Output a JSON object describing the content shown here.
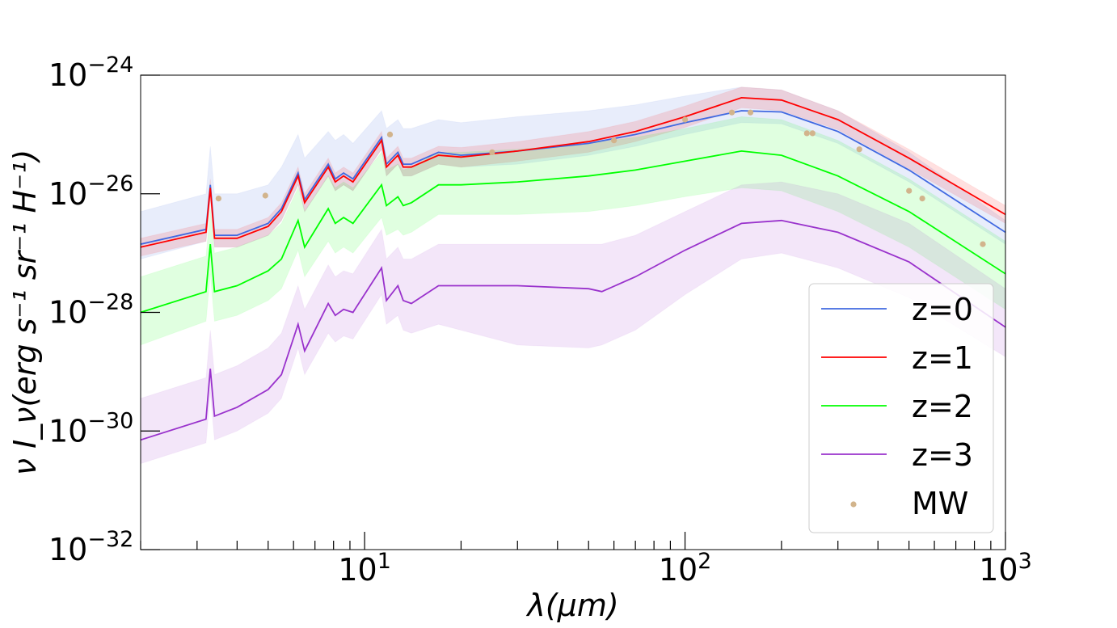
{
  "chart_data": {
    "type": "line",
    "title": "",
    "xlabel": "λ(μm)",
    "ylabel": "ν I_ν(erg s⁻¹ sr⁻¹ H⁻¹)",
    "xscale": "log",
    "yscale": "log",
    "xlim": [
      2,
      1000
    ],
    "ylim": [
      1e-32,
      1e-24
    ],
    "grid": false,
    "legend_position": "lower-right",
    "x_ticks": [
      {
        "value": 10,
        "base": "10",
        "exp": "1"
      },
      {
        "value": 100,
        "base": "10",
        "exp": "2"
      },
      {
        "value": 1000,
        "base": "10",
        "exp": "3"
      }
    ],
    "y_ticks": [
      {
        "value": 1e-24,
        "base": "10",
        "exp": "−24"
      },
      {
        "value": 1e-26,
        "base": "10",
        "exp": "−26"
      },
      {
        "value": 1e-28,
        "base": "10",
        "exp": "−28"
      },
      {
        "value": 1e-30,
        "base": "10",
        "exp": "−30"
      },
      {
        "value": 1e-32,
        "base": "10",
        "exp": "−32"
      }
    ],
    "series": [
      {
        "name": "z=0",
        "color": "#4169e1",
        "x": [
          2,
          3.2,
          3.3,
          3.4,
          4,
          5,
          5.5,
          6.2,
          6.5,
          7.7,
          8.1,
          8.6,
          9.2,
          11.3,
          11.7,
          12.7,
          13.2,
          14,
          17,
          20,
          30,
          50,
          70,
          100,
          150,
          200,
          300,
          500,
          1000
        ],
        "y": [
          -26.85,
          -26.6,
          -25.85,
          -26.7,
          -26.7,
          -26.5,
          -26.25,
          -25.65,
          -26.1,
          -25.5,
          -25.75,
          -25.65,
          -25.75,
          -25.05,
          -25.5,
          -25.3,
          -25.5,
          -25.5,
          -25.3,
          -25.35,
          -25.28,
          -25.15,
          -25.0,
          -24.8,
          -24.6,
          -24.62,
          -24.95,
          -25.6,
          -26.65
        ],
        "band_upper": [
          -26.3,
          -26.0,
          -25.2,
          -26.0,
          -26.0,
          -25.85,
          -25.55,
          -25.0,
          -25.4,
          -24.95,
          -25.1,
          -25.0,
          -25.15,
          -24.6,
          -24.9,
          -24.75,
          -24.9,
          -24.9,
          -24.75,
          -24.8,
          -24.7,
          -24.6,
          -24.5,
          -24.35,
          -24.2,
          -24.25,
          -24.6,
          -25.3,
          -26.45
        ],
        "band_lower": [
          -27.1,
          -26.8,
          -26.1,
          -26.9,
          -26.9,
          -26.7,
          -26.45,
          -25.85,
          -26.3,
          -25.7,
          -25.95,
          -25.85,
          -25.95,
          -25.25,
          -25.7,
          -25.5,
          -25.7,
          -25.7,
          -25.5,
          -25.55,
          -25.5,
          -25.35,
          -25.2,
          -25.0,
          -24.8,
          -24.82,
          -25.15,
          -25.8,
          -26.85
        ]
      },
      {
        "name": "z=1",
        "color": "#ff0000",
        "x": [
          2,
          3.2,
          3.3,
          3.4,
          4,
          5,
          5.5,
          6.2,
          6.5,
          7.7,
          8.1,
          8.6,
          9.2,
          11.3,
          11.7,
          12.7,
          13.2,
          14,
          17,
          20,
          30,
          50,
          70,
          100,
          150,
          200,
          300,
          500,
          1000
        ],
        "y": [
          -26.9,
          -26.65,
          -25.9,
          -26.75,
          -26.75,
          -26.55,
          -26.3,
          -25.7,
          -26.15,
          -25.55,
          -25.8,
          -25.7,
          -25.8,
          -25.1,
          -25.55,
          -25.35,
          -25.55,
          -25.55,
          -25.35,
          -25.38,
          -25.28,
          -25.12,
          -24.95,
          -24.7,
          -24.38,
          -24.42,
          -24.75,
          -25.4,
          -26.35
        ],
        "band_upper": [
          -26.75,
          -26.5,
          -25.75,
          -26.6,
          -26.6,
          -26.4,
          -26.15,
          -25.55,
          -26.0,
          -25.4,
          -25.65,
          -25.55,
          -25.65,
          -24.95,
          -25.4,
          -25.2,
          -25.4,
          -25.4,
          -25.2,
          -25.22,
          -25.12,
          -24.95,
          -24.78,
          -24.52,
          -24.2,
          -24.25,
          -24.6,
          -25.25,
          -26.2
        ],
        "band_lower": [
          -27.05,
          -26.8,
          -26.05,
          -26.9,
          -26.9,
          -26.7,
          -26.45,
          -25.85,
          -26.3,
          -25.7,
          -25.95,
          -25.85,
          -25.95,
          -25.25,
          -25.7,
          -25.5,
          -25.7,
          -25.7,
          -25.5,
          -25.55,
          -25.45,
          -25.3,
          -25.12,
          -24.88,
          -24.55,
          -24.6,
          -24.92,
          -25.58,
          -26.5
        ]
      },
      {
        "name": "z=2",
        "color": "#00ff00",
        "x": [
          2,
          3.2,
          3.3,
          3.4,
          4,
          5,
          5.5,
          6.2,
          6.5,
          7.7,
          8.1,
          8.6,
          9.2,
          11.3,
          11.7,
          12.7,
          13.2,
          14,
          17,
          20,
          30,
          50,
          70,
          100,
          150,
          200,
          300,
          500,
          1000
        ],
        "y": [
          -28.0,
          -27.65,
          -26.85,
          -27.65,
          -27.55,
          -27.3,
          -27.1,
          -26.45,
          -26.9,
          -26.25,
          -26.5,
          -26.4,
          -26.5,
          -25.85,
          -26.2,
          -26.05,
          -26.2,
          -26.15,
          -25.85,
          -25.85,
          -25.8,
          -25.7,
          -25.6,
          -25.45,
          -25.28,
          -25.35,
          -25.7,
          -26.3,
          -27.35
        ],
        "band_upper": [
          -27.4,
          -27.05,
          -26.25,
          -27.0,
          -26.9,
          -26.7,
          -26.5,
          -25.9,
          -26.3,
          -25.7,
          -25.9,
          -25.8,
          -25.9,
          -25.3,
          -25.6,
          -25.5,
          -25.6,
          -25.55,
          -25.3,
          -25.3,
          -25.25,
          -25.15,
          -25.05,
          -24.9,
          -24.7,
          -24.75,
          -25.1,
          -25.75,
          -26.8
        ],
        "band_lower": [
          -28.55,
          -28.15,
          -27.35,
          -28.15,
          -28.05,
          -27.8,
          -27.6,
          -26.95,
          -27.4,
          -26.8,
          -27.0,
          -26.9,
          -27.0,
          -26.4,
          -26.7,
          -26.6,
          -26.7,
          -26.65,
          -26.35,
          -26.35,
          -26.35,
          -26.3,
          -26.2,
          -26.05,
          -25.9,
          -25.95,
          -26.3,
          -26.9,
          -27.95
        ]
      },
      {
        "name": "z=3",
        "color": "#9932cc",
        "x": [
          2,
          3.2,
          3.3,
          3.4,
          4,
          5,
          5.5,
          6.2,
          6.5,
          7.7,
          8.1,
          8.6,
          9.2,
          11.3,
          11.7,
          12.7,
          13.2,
          14,
          17,
          20,
          30,
          50,
          55,
          70,
          100,
          150,
          200,
          300,
          500,
          1000
        ],
        "y": [
          -30.15,
          -29.8,
          -28.95,
          -29.75,
          -29.6,
          -29.3,
          -29.05,
          -28.2,
          -28.65,
          -27.85,
          -28.05,
          -27.95,
          -28.0,
          -27.25,
          -27.8,
          -27.55,
          -27.8,
          -27.85,
          -27.55,
          -27.55,
          -27.55,
          -27.6,
          -27.65,
          -27.4,
          -26.95,
          -26.5,
          -26.45,
          -26.65,
          -27.15,
          -28.25
        ],
        "band_upper": [
          -29.45,
          -29.1,
          -28.3,
          -29.05,
          -28.9,
          -28.6,
          -28.35,
          -27.55,
          -27.95,
          -27.2,
          -27.4,
          -27.3,
          -27.35,
          -26.6,
          -27.1,
          -26.9,
          -27.1,
          -27.1,
          -26.85,
          -26.85,
          -26.85,
          -26.85,
          -26.85,
          -26.7,
          -26.3,
          -25.85,
          -25.8,
          -26.0,
          -26.5,
          -27.6
        ],
        "band_lower": [
          -30.55,
          -30.2,
          -29.35,
          -30.15,
          -30.0,
          -29.7,
          -29.45,
          -28.6,
          -29.05,
          -28.35,
          -28.5,
          -28.4,
          -28.45,
          -27.7,
          -28.2,
          -28.05,
          -28.3,
          -28.35,
          -28.2,
          -28.3,
          -28.55,
          -28.6,
          -28.55,
          -28.3,
          -27.7,
          -27.1,
          -27.0,
          -27.25,
          -27.75,
          -28.75
        ]
      }
    ],
    "points": {
      "name": "MW",
      "color": "#d2b48c",
      "x": [
        3.5,
        4.9,
        12,
        25,
        60,
        100,
        140,
        160,
        240,
        250,
        350,
        500,
        550,
        850
      ],
      "y": [
        -26.08,
        -26.03,
        -25.0,
        -25.3,
        -25.1,
        -24.75,
        -24.63,
        -24.63,
        -24.98,
        -24.98,
        -25.25,
        -25.95,
        -26.08,
        -26.85
      ]
    }
  }
}
